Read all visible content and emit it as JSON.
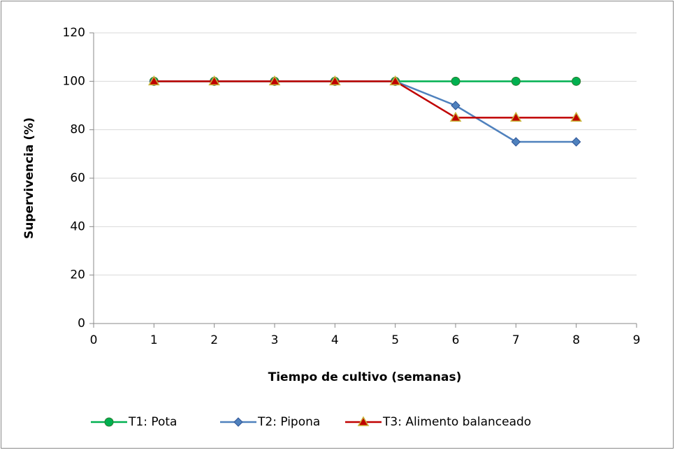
{
  "chart_data": {
    "type": "line",
    "x_label": "Tiempo de cultivo (semanas)",
    "y_label": "Supervivencia (%)",
    "x": [
      1,
      2,
      3,
      4,
      5,
      6,
      7,
      8
    ],
    "xlim": [
      0,
      9
    ],
    "xticks": [
      0,
      1,
      2,
      3,
      4,
      5,
      6,
      7,
      8,
      9
    ],
    "ylim": [
      0,
      120
    ],
    "yticks": [
      0,
      20,
      40,
      60,
      80,
      100,
      120
    ],
    "grid": true,
    "legend": "bottom",
    "series": [
      {
        "name": "T1: Pota",
        "color": "#00b050",
        "marker": "circle",
        "values": [
          100,
          100,
          100,
          100,
          100,
          100,
          100,
          100
        ]
      },
      {
        "name": "T2: Pipona",
        "color": "#4f81bd",
        "marker": "diamond",
        "values": [
          100,
          100,
          100,
          100,
          100,
          90,
          75,
          75
        ]
      },
      {
        "name": "T3: Alimento balanceado",
        "color": "#c00000",
        "marker": "triangle",
        "values": [
          100,
          100,
          100,
          100,
          100,
          85,
          85,
          85
        ]
      }
    ]
  }
}
